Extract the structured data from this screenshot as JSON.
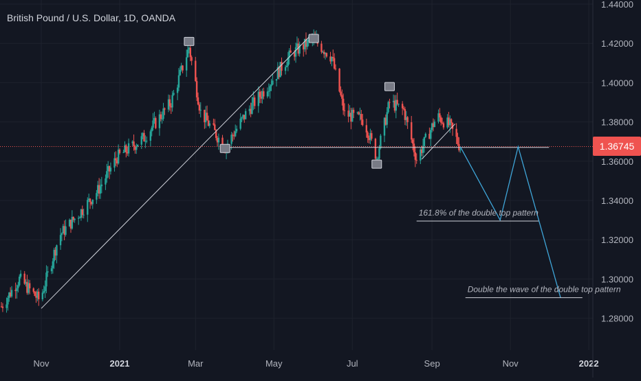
{
  "title": "British Pound / U.S. Dollar, 1D, OANDA",
  "colors": {
    "background": "#131722",
    "grid": "#1e222d",
    "text": "#b2b5be",
    "up": "#26a69a",
    "down": "#ef5350",
    "pattern": "#3fa6d9",
    "trendline": "#d1d4dc"
  },
  "chart_data": {
    "type": "candlestick",
    "symbol": "GBPUSD",
    "timeframe": "1D",
    "x_axis": {
      "tick_labels": [
        "Nov",
        "2021",
        "Mar",
        "May",
        "Jul",
        "Sep",
        "Nov",
        "2022"
      ],
      "range": [
        "2020-10-01",
        "2022-01-01"
      ]
    },
    "y_axis": {
      "tick_labels": [
        "1.44000",
        "1.42000",
        "1.40000",
        "1.38000",
        "1.36000",
        "1.34000",
        "1.32000",
        "1.30000",
        "1.28000"
      ],
      "range": [
        1.2725,
        1.4435
      ]
    },
    "last_price": "1.36745",
    "grid": true,
    "price_path": [
      {
        "date": "2020-10-01",
        "close": 1.286
      },
      {
        "date": "2020-10-15",
        "close": 1.3
      },
      {
        "date": "2020-10-31",
        "close": 1.289
      },
      {
        "date": "2020-11-15",
        "close": 1.322
      },
      {
        "date": "2020-11-30",
        "close": 1.333
      },
      {
        "date": "2020-12-15",
        "close": 1.345
      },
      {
        "date": "2020-12-30",
        "close": 1.362
      },
      {
        "date": "2021-01-20",
        "close": 1.372
      },
      {
        "date": "2021-02-10",
        "close": 1.39
      },
      {
        "date": "2021-02-24",
        "close": 1.418
      },
      {
        "date": "2021-03-05",
        "close": 1.385
      },
      {
        "date": "2021-03-24",
        "close": 1.367
      },
      {
        "date": "2021-04-10",
        "close": 1.385
      },
      {
        "date": "2021-04-28",
        "close": 1.4
      },
      {
        "date": "2021-05-15",
        "close": 1.415
      },
      {
        "date": "2021-06-01",
        "close": 1.422
      },
      {
        "date": "2021-06-15",
        "close": 1.413
      },
      {
        "date": "2021-06-25",
        "close": 1.384
      },
      {
        "date": "2021-07-10",
        "close": 1.381
      },
      {
        "date": "2021-07-20",
        "close": 1.362
      },
      {
        "date": "2021-07-30",
        "close": 1.39
      },
      {
        "date": "2021-08-10",
        "close": 1.386
      },
      {
        "date": "2021-08-20",
        "close": 1.361
      },
      {
        "date": "2021-09-05",
        "close": 1.383
      },
      {
        "date": "2021-09-15",
        "close": 1.378
      },
      {
        "date": "2021-09-23",
        "close": 1.367
      }
    ],
    "annotations": {
      "labels": [
        {
          "text": "161.8% of the double top pattern",
          "price": 1.3295
        },
        {
          "text": "Double the wave of the double top pattern",
          "price": 1.2905
        }
      ],
      "neckline_price": 1.367,
      "projection_path": [
        {
          "date": "2021-09-23",
          "price": 1.3674
        },
        {
          "date": "2021-10-24",
          "price": 1.33
        },
        {
          "date": "2021-11-07",
          "price": 1.3674
        },
        {
          "date": "2021-12-10",
          "price": 1.2905
        }
      ],
      "trendlines": [
        {
          "from": {
            "date": "2020-11-01",
            "price": 1.285
          },
          "to": {
            "date": "2021-05-31",
            "price": 1.425
          }
        },
        {
          "from": {
            "date": "2021-08-24",
            "price": 1.361
          },
          "to": {
            "date": "2021-09-19",
            "price": 1.379
          }
        }
      ],
      "pivot_markers": [
        {
          "date": "2021-02-24",
          "price": 1.421
        },
        {
          "date": "2021-03-24",
          "price": 1.3665
        },
        {
          "date": "2021-06-01",
          "price": 1.4225
        },
        {
          "date": "2021-07-20",
          "price": 1.3585
        },
        {
          "date": "2021-07-30",
          "price": 1.398
        }
      ]
    }
  }
}
